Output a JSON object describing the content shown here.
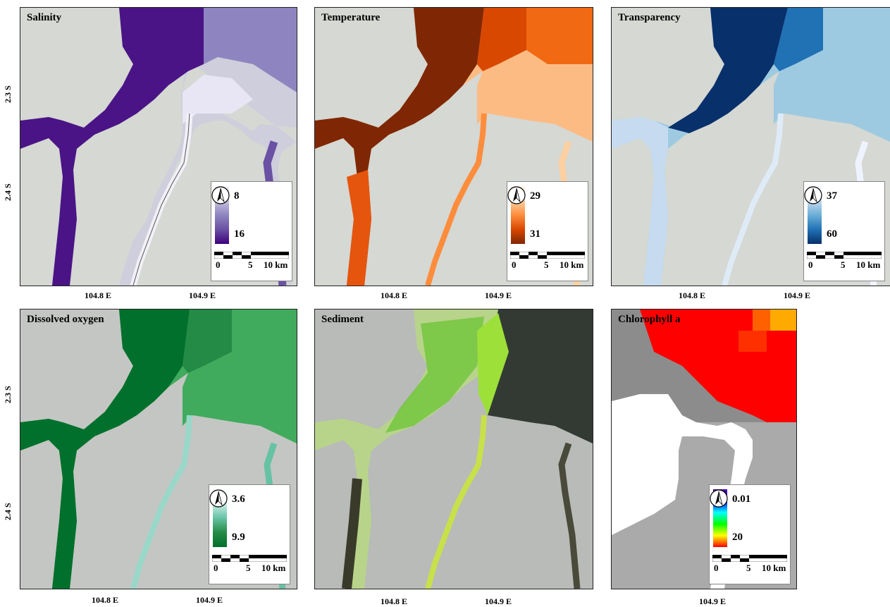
{
  "panels": [
    {
      "title": "Salinity",
      "legend_low": "8",
      "legend_high": "16",
      "ramp_colors": [
        "#f2f0f7",
        "#3f007d"
      ],
      "main_color": "#4a1486"
    },
    {
      "title": "Temperature",
      "legend_low": "29",
      "legend_high": "31",
      "ramp_colors": [
        "#fff5eb",
        "#7f2704"
      ],
      "main_color": "#8c2d04"
    },
    {
      "title": "Transparency",
      "legend_low": "37",
      "legend_high": "60",
      "ramp_colors": [
        "#f7fbff",
        "#08306b"
      ],
      "main_color": "#08306b"
    },
    {
      "title": "Dissolved oxygen",
      "legend_low": "3.6",
      "legend_high": "9.9",
      "ramp_colors": [
        "#f7fcfd",
        "#00702c"
      ],
      "main_color": "#00702c"
    },
    {
      "title": "Sediment"
    },
    {
      "title": "Chlorophyll a",
      "legend_low": "0.01",
      "legend_high": "20",
      "ramp_colors": [
        "#ff0000",
        "#ffff00",
        "#00ff00",
        "#00ffff",
        "#0000ff",
        "#5000a0"
      ]
    }
  ],
  "scale": {
    "zero": "0",
    "five": "5",
    "ten": "10 km"
  },
  "x_ticks": [
    "104.8 E",
    "104.9 E"
  ],
  "y_ticks": [
    "2.3 S",
    "2.4 S"
  ],
  "icons": [
    "north-arrow-icon"
  ]
}
